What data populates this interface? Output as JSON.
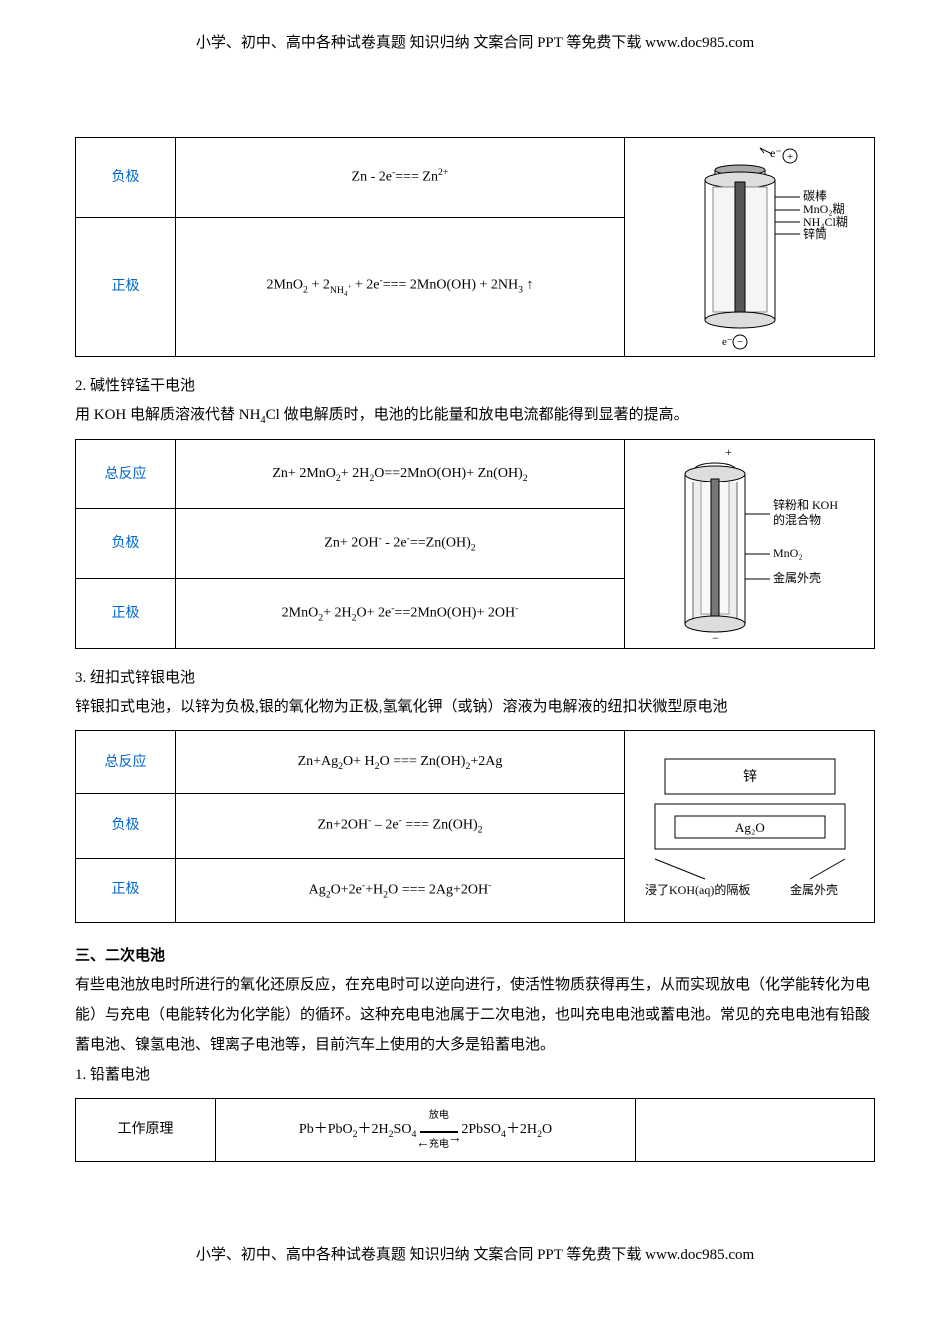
{
  "header": "小学、初中、高中各种试卷真题 知识归纳 文案合同 PPT 等免费下载    www.doc985.com",
  "footer": "小学、初中、高中各种试卷真题 知识归纳 文案合同 PPT 等免费下载    www.doc985.com",
  "table1": {
    "row1_label": "负极",
    "row1_eq": "Zn - 2e<sup>-</sup>=== Zn<sup>2+</sup>",
    "row2_label": "正极",
    "row2_eq": "2MnO<sub>2</sub> + 2<sub>NH<sub>4</sub><sup>+</sup></sub> + 2e<sup>-</sup>=== 2MnO(OH) + 2NH<sub>3</sub> ↑",
    "diagram": {
      "labels": [
        "碳棒",
        "MnO<sub>2</sub>糊",
        "NH<sub>4</sub>Cl糊",
        "锌筒"
      ],
      "top_sign": "+",
      "bottom_sign": "−",
      "e_label": "e<sup>-</sup>",
      "outer_color": "#888",
      "inner_color": "#fff",
      "line_color": "#000"
    }
  },
  "section2": {
    "title": "2. 碱性锌锰干电池",
    "desc": "用 KOH 电解质溶液代替 NH<sub>4</sub>Cl 做电解质时，电池的比能量和放电电流都能得到显著的提高。"
  },
  "table2": {
    "row1_label": "总反应",
    "row1_eq": "Zn+ 2MnO<sub>2</sub>+ 2H<sub>2</sub>O==2MnO(OH)+ Zn(OH)<sub>2</sub>",
    "row2_label": "负极",
    "row2_eq": "Zn+ 2OH<sup>-</sup> - 2e<sup>-</sup>==Zn(OH)<sub>2</sub>",
    "row3_label": "正极",
    "row3_eq": "2MnO<sub>2</sub>+ 2H<sub>2</sub>O+ 2e<sup>-</sup>==2MnO(OH)+ 2OH<sup>-</sup>",
    "diagram": {
      "labels": [
        "锌粉和 KOH<br>的混合物",
        "MnO<sub>2</sub>",
        "金属外壳"
      ],
      "top_sign": "+",
      "bottom_sign": "−"
    }
  },
  "section3": {
    "title": "3. 纽扣式锌银电池",
    "desc": "锌银扣式电池，以锌为负极,银的氧化物为正极,氢氧化钾（或钠）溶液为电解液的纽扣状微型原电池"
  },
  "table3": {
    "row1_label": "总反应",
    "row1_eq": "Zn+Ag<sub>2</sub>O+ H<sub>2</sub>O === Zn(OH)<sub>2</sub>+2Ag",
    "row2_label": "负极",
    "row2_eq": "Zn+2OH<sup>-</sup> – 2e<sup>-</sup> === Zn(OH)<sub>2</sub>",
    "row3_label": "正极",
    "row3_eq": "Ag<sub>2</sub>O+2e<sup>-</sup>+H<sub>2</sub>O === 2Ag+2OH<sup>-</sup>",
    "diagram": {
      "zinc": "锌",
      "ag2o": "Ag<sub>2</sub>O",
      "separator": "浸了KOH(aq)的隔板",
      "shell": "金属外壳"
    }
  },
  "section4": {
    "title": "三、二次电池",
    "desc": "有些电池放电时所进行的氧化还原反应，在充电时可以逆向进行，使活性物质获得再生，从而实现放电（化学能转化为电能）与充电（电能转化为化学能）的循环。这种充电电池属于二次电池，也叫充电电池或蓄电池。常见的充电电池有铅酸 蓄电池、镍氢电池、锂离子电池等，目前汽车上使用的大多是铅蓄电池。",
    "sub": "1. 铅蓄电池"
  },
  "table4": {
    "row1_label": "工作原理",
    "row1_eq": "Pb＋PbO<sub>2</sub>＋2H<sub>2</sub>SO<sub>4</sub> <span style='display:inline-block;position:relative;'><span style='font-size:10px;position:absolute;top:-10px;left:0;right:0;text-align:center;'>放电</span><span style='border-top:1px solid #000;border-bottom:1px solid #000;display:inline-block;width:38px;height:1px;position:relative;'><span style='position:absolute;right:-4px;top:-6px;'>→</span><span style='position:absolute;left:-4px;top:-1px;'>←</span></span><span style='font-size:10px;position:absolute;bottom:-12px;left:0;right:0;text-align:center;'>充电</span></span> 2PbSO<sub>4</sub>＋2H<sub>2</sub>O"
  }
}
